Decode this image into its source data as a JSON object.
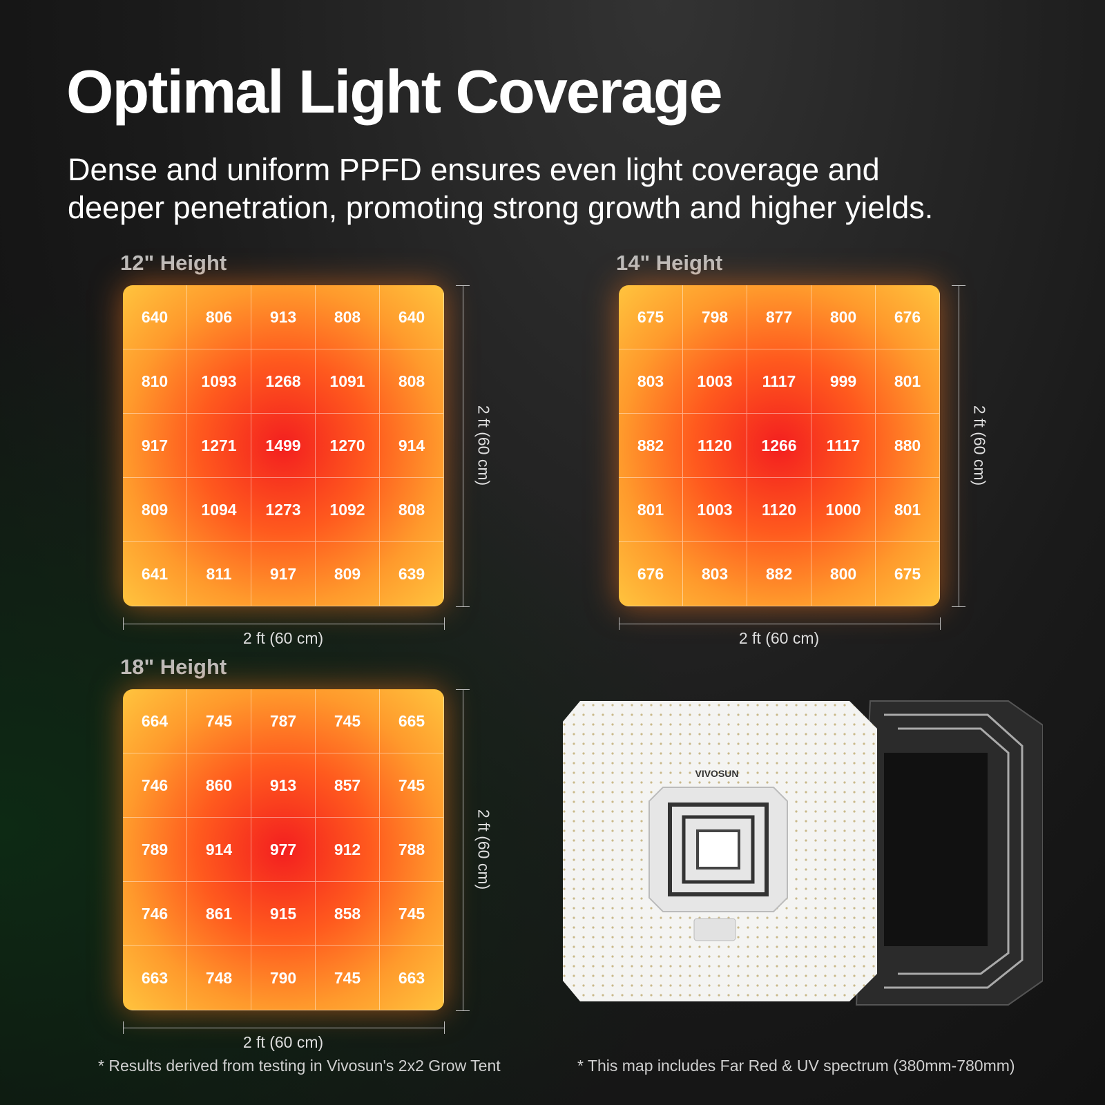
{
  "header": {
    "title": "Optimal Light Coverage",
    "subtitle_lines": [
      "Dense and uniform PPFD ensures even light coverage and",
      "deeper penetration, promoting strong growth and higher yields."
    ]
  },
  "maps": [
    {
      "label": "12\" Height",
      "width_label": "2 ft (60 cm)",
      "height_label": "2 ft (60 cm)",
      "rows": [
        [
          640,
          806,
          913,
          808,
          640
        ],
        [
          810,
          1093,
          1268,
          1091,
          808
        ],
        [
          917,
          1271,
          1499,
          1270,
          914
        ],
        [
          809,
          1094,
          1273,
          1092,
          808
        ],
        [
          641,
          811,
          917,
          809,
          639
        ]
      ]
    },
    {
      "label": "14\" Height",
      "width_label": "2 ft (60 cm)",
      "height_label": "2 ft (60 cm)",
      "rows": [
        [
          675,
          798,
          877,
          800,
          676
        ],
        [
          803,
          1003,
          1117,
          999,
          801
        ],
        [
          882,
          1120,
          1266,
          1117,
          880
        ],
        [
          801,
          1003,
          1120,
          1000,
          801
        ],
        [
          676,
          803,
          882,
          800,
          675
        ]
      ]
    },
    {
      "label": "18\" Height",
      "width_label": "2 ft (60 cm)",
      "height_label": "2 ft (60 cm)",
      "rows": [
        [
          664,
          745,
          787,
          745,
          665
        ],
        [
          746,
          860,
          913,
          857,
          745
        ],
        [
          789,
          914,
          977,
          912,
          788
        ],
        [
          746,
          861,
          915,
          858,
          745
        ],
        [
          663,
          748,
          790,
          745,
          663
        ]
      ]
    }
  ],
  "product": {
    "brand": "VIVOSUN"
  },
  "notes": [
    "* Results derived from testing in Vivosun's 2x2 Grow Tent",
    "* This map includes Far Red & UV spectrum (380mm-780mm)"
  ]
}
